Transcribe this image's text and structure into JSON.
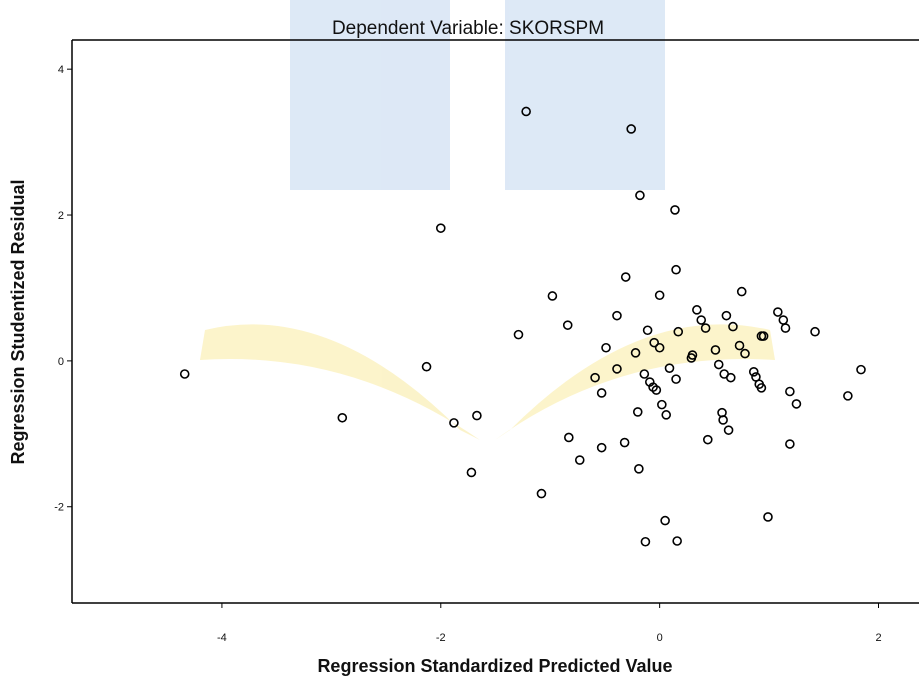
{
  "chart_data": {
    "type": "scatter",
    "title": "Dependent Variable: SKORSPM",
    "x_label": "Regression Standardized Predicted Value",
    "y_label": "Regression Studentized Residual",
    "xlim": [
      -5.37,
      2.37
    ],
    "ylim": [
      -3.32,
      4.4
    ],
    "xticks": [
      -4,
      -2,
      0,
      2
    ],
    "yticks": [
      -2,
      0,
      2,
      4
    ],
    "grid": false,
    "color": "#000000",
    "x": [
      -4.34,
      -2.9,
      -2.13,
      -2.0,
      -1.88,
      -1.67,
      -1.72,
      -1.22,
      -1.29,
      -1.08,
      -0.98,
      -0.84,
      -0.83,
      -0.73,
      -0.59,
      -0.53,
      -0.53,
      -0.49,
      -0.39,
      -0.39,
      -0.32,
      -0.31,
      -0.26,
      -0.22,
      -0.2,
      -0.19,
      -0.18,
      -0.14,
      -0.11,
      -0.09,
      -0.06,
      -0.05,
      -0.03,
      0.0,
      0.0,
      0.02,
      0.06,
      0.09,
      0.05,
      0.14,
      0.15,
      0.15,
      0.17,
      -0.13,
      0.16,
      0.29,
      0.3,
      0.34,
      0.38,
      0.42,
      0.44,
      0.51,
      0.54,
      0.57,
      0.58,
      0.59,
      0.61,
      0.63,
      0.65,
      0.67,
      0.73,
      0.75,
      0.78,
      0.86,
      0.88,
      0.91,
      0.93,
      0.93,
      0.95,
      0.99,
      1.08,
      1.13,
      1.15,
      1.19,
      1.19,
      1.25,
      1.42,
      1.72,
      1.84
    ],
    "values": [
      -0.18,
      -0.78,
      -0.08,
      1.82,
      -0.85,
      -0.75,
      -1.53,
      3.42,
      0.36,
      -1.82,
      0.89,
      0.49,
      -1.05,
      -1.36,
      -0.23,
      -1.19,
      -0.44,
      0.18,
      0.62,
      -0.11,
      -1.12,
      1.15,
      3.18,
      0.11,
      -0.7,
      -1.48,
      2.27,
      -0.18,
      0.42,
      -0.29,
      -0.36,
      0.25,
      -0.4,
      0.9,
      0.18,
      -0.6,
      -0.74,
      -0.1,
      -2.19,
      2.07,
      1.25,
      -0.25,
      0.4,
      -2.48,
      -2.47,
      0.04,
      0.08,
      0.7,
      0.56,
      0.45,
      -1.08,
      0.15,
      -0.05,
      -0.71,
      -0.81,
      -0.18,
      0.62,
      -0.95,
      -0.23,
      0.47,
      0.21,
      0.95,
      0.1,
      -0.15,
      -0.22,
      -0.32,
      -0.37,
      0.34,
      0.34,
      -2.14,
      0.67,
      0.56,
      0.45,
      -0.42,
      -1.14,
      -0.59,
      0.4,
      -0.48,
      -0.12
    ]
  }
}
